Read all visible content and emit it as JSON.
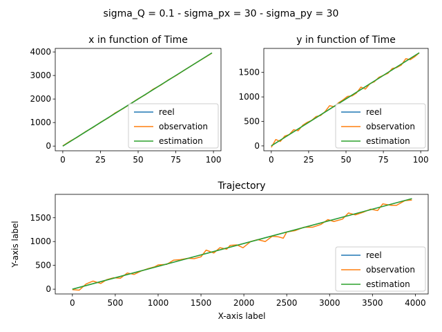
{
  "figure": {
    "suptitle": "sigma_Q = 0.1 - sigma_px = 30 - sigma_py = 30"
  },
  "colors": {
    "reel": "#1f77b4",
    "observation": "#ff7f0e",
    "estimation": "#2ca02c"
  },
  "chart_data": [
    {
      "type": "line",
      "title": "x in function of Time",
      "xlabel": "",
      "ylabel": "",
      "xlim": [
        -5,
        105
      ],
      "ylim": [
        -200,
        4150
      ],
      "xticks": [
        0,
        25,
        50,
        75,
        100
      ],
      "yticks": [
        0,
        1000,
        2000,
        3000,
        4000
      ],
      "legend": [
        "reel",
        "observation",
        "estimation"
      ],
      "legend_loc": "lower-right",
      "series": [
        {
          "name": "reel",
          "x": [
            0,
            99
          ],
          "y": [
            0,
            3960
          ]
        },
        {
          "name": "observation",
          "x": [
            0,
            5,
            10,
            15,
            20,
            25,
            30,
            35,
            40,
            45,
            50,
            55,
            60,
            65,
            70,
            75,
            80,
            85,
            90,
            95,
            99
          ],
          "y": [
            10,
            215,
            390,
            610,
            790,
            1010,
            1190,
            1420,
            1590,
            1800,
            2010,
            2190,
            2420,
            2590,
            2810,
            2990,
            3200,
            3400,
            3600,
            3790,
            3950
          ]
        },
        {
          "name": "estimation",
          "x": [
            0,
            99
          ],
          "y": [
            0,
            3960
          ]
        }
      ]
    },
    {
      "type": "line",
      "title": "y in function of Time",
      "xlabel": "",
      "ylabel": "",
      "xlim": [
        -5,
        105
      ],
      "ylim": [
        -100,
        1990
      ],
      "xticks": [
        0,
        25,
        50,
        75,
        100
      ],
      "yticks": [
        0,
        500,
        1000,
        1500
      ],
      "legend": [
        "reel",
        "observation",
        "estimation"
      ],
      "legend_loc": "lower-right",
      "series": [
        {
          "name": "reel",
          "x": [
            0,
            99
          ],
          "y": [
            0,
            1900
          ]
        },
        {
          "name": "observation",
          "x": [
            0,
            3,
            6,
            9,
            12,
            15,
            18,
            21,
            24,
            27,
            30,
            33,
            36,
            39,
            42,
            45,
            48,
            51,
            54,
            57,
            60,
            63,
            66,
            69,
            72,
            75,
            78,
            81,
            84,
            87,
            90,
            93,
            96,
            99
          ],
          "y": [
            -30,
            130,
            90,
            200,
            230,
            330,
            310,
            420,
            480,
            520,
            600,
            620,
            700,
            820,
            800,
            880,
            940,
            1010,
            1020,
            1080,
            1200,
            1160,
            1270,
            1310,
            1400,
            1440,
            1480,
            1580,
            1600,
            1650,
            1780,
            1760,
            1820,
            1900
          ]
        },
        {
          "name": "estimation",
          "x": [
            0,
            99
          ],
          "y": [
            0,
            1900
          ]
        }
      ]
    },
    {
      "type": "line",
      "title": "Trajectory",
      "xlabel": "X-axis label",
      "ylabel": "Y-axis label",
      "xlim": [
        -200,
        4150
      ],
      "ylim": [
        -100,
        1990
      ],
      "xticks": [
        0,
        500,
        1000,
        1500,
        2000,
        2500,
        3000,
        3500,
        4000
      ],
      "yticks": [
        0,
        500,
        1000,
        1500
      ],
      "legend": [
        "reel",
        "observation",
        "estimation"
      ],
      "legend_loc": "lower-right",
      "series": [
        {
          "name": "reel",
          "x": [
            0,
            3960
          ],
          "y": [
            0,
            1900
          ]
        },
        {
          "name": "observation",
          "x": [
            0,
            80,
            160,
            240,
            330,
            400,
            480,
            560,
            640,
            720,
            800,
            880,
            960,
            1000,
            1100,
            1180,
            1260,
            1350,
            1420,
            1500,
            1560,
            1650,
            1720,
            1800,
            1840,
            1920,
            1990,
            2080,
            2160,
            2250,
            2330,
            2400,
            2460,
            2500,
            2600,
            2700,
            2800,
            2900,
            2980,
            3050,
            3150,
            3220,
            3300,
            3400,
            3480,
            3560,
            3620,
            3720,
            3780,
            3880,
            3960
          ],
          "y": [
            -10,
            -20,
            110,
            170,
            120,
            200,
            240,
            230,
            340,
            310,
            380,
            430,
            470,
            510,
            520,
            610,
            620,
            650,
            640,
            680,
            820,
            760,
            870,
            840,
            920,
            930,
            870,
            1000,
            1040,
            1000,
            1110,
            1100,
            1070,
            1200,
            1230,
            1300,
            1300,
            1360,
            1460,
            1420,
            1470,
            1600,
            1560,
            1620,
            1680,
            1650,
            1790,
            1760,
            1760,
            1860,
            1870
          ]
        },
        {
          "name": "estimation",
          "x": [
            0,
            3960
          ],
          "y": [
            0,
            1900
          ]
        }
      ]
    }
  ]
}
